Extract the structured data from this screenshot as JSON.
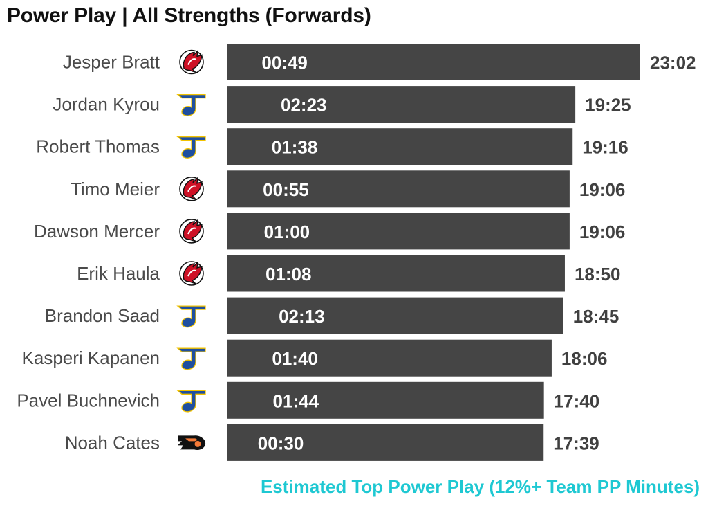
{
  "title": "Power Play | All Strengths (Forwards)",
  "footer_text": "Estimated Top Power Play (12%+ Team PP Minutes)",
  "colors": {
    "bar": "#454545",
    "bar_label": "#ffffff",
    "total_label": "#404040",
    "name_label": "#4a4a4a",
    "footer": "#1ec8d2",
    "devils_red": "#ce1126",
    "blues_blue": "#1f4f9f",
    "flyers_black": "#111111",
    "flyers_orange": "#f47a38"
  },
  "chart_data": {
    "type": "bar",
    "orientation": "horizontal",
    "categories": [
      "Jesper Bratt",
      "Jordan Kyrou",
      "Robert Thomas",
      "Timo Meier",
      "Dawson Mercer",
      "Erik Haula",
      "Brandon Saad",
      "Kasperi Kapanen",
      "Pavel Buchnevich",
      "Noah Cates"
    ],
    "teams": [
      "devils-logo-icon",
      "blues-logo-icon",
      "blues-logo-icon",
      "devils-logo-icon",
      "devils-logo-icon",
      "devils-logo-icon",
      "blues-logo-icon",
      "blues-logo-icon",
      "blues-logo-icon",
      "flyers-logo-icon"
    ],
    "series": [
      {
        "total_labels": [
          "23:02",
          "19:25",
          "19:16",
          "19:06",
          "19:06",
          "18:50",
          "18:45",
          "18:06",
          "17:40",
          "17:39"
        ],
        "values_minutes": [
          23.033,
          19.417,
          19.267,
          19.1,
          19.1,
          18.833,
          18.75,
          18.1,
          17.667,
          17.65
        ],
        "pp_labels": [
          "00:49",
          "02:23",
          "01:38",
          "00:55",
          "01:00",
          "01:08",
          "02:13",
          "01:40",
          "01:44",
          "00:30"
        ],
        "pp_minutes": [
          0.817,
          2.383,
          1.633,
          0.917,
          1.0,
          1.133,
          2.217,
          1.667,
          1.733,
          0.5
        ]
      }
    ],
    "xlim": [
      0,
      23.033
    ],
    "grid": false,
    "legend": "none"
  }
}
